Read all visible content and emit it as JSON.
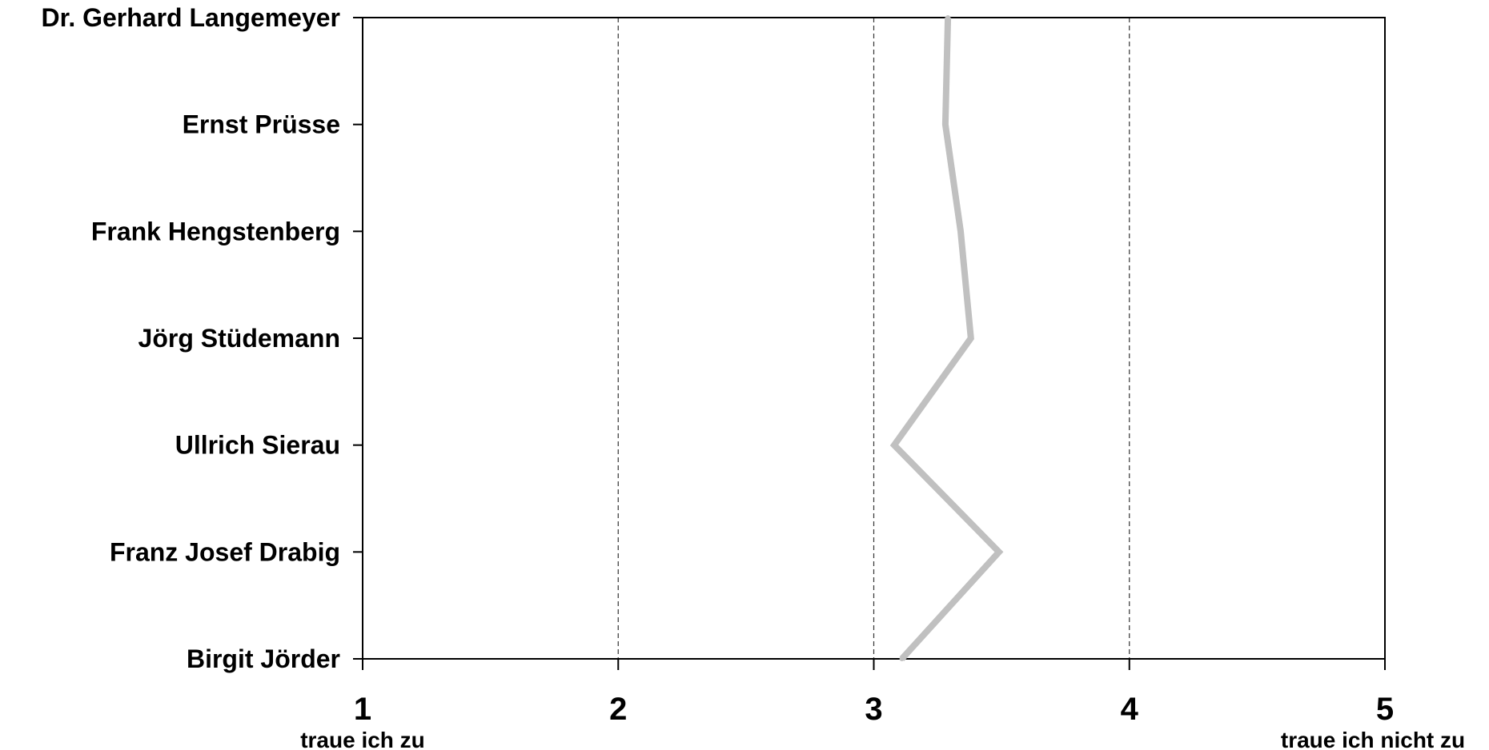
{
  "chart_data": {
    "type": "line",
    "orientation": "horizontal",
    "categories": [
      "Dr. Gerhard Langemeyer",
      "Ernst Prüsse",
      "Frank Hengstenberg",
      "Jörg Stüdemann",
      "Ullrich Sierau",
      "Franz Josef Drabig",
      "Birgit Jörder"
    ],
    "series": [
      {
        "values": [
          3.29,
          3.28,
          3.34,
          3.38,
          3.08,
          3.49,
          3.11
        ],
        "color": "#c0c0c0"
      }
    ],
    "xlim": [
      1,
      5
    ],
    "xticks": [
      "1",
      "2",
      "3",
      "4",
      "5"
    ],
    "x_end_labels": {
      "left": "traue ich zu",
      "right": "traue ich nicht zu"
    },
    "grid": {
      "vertical": true,
      "style": "dashed"
    },
    "legend": "none"
  }
}
